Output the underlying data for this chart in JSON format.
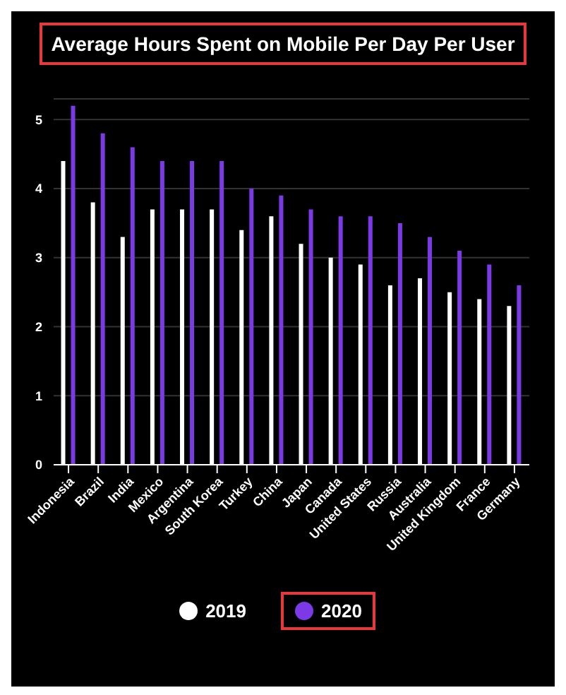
{
  "chart_data": {
    "type": "bar",
    "title": "Average Hours Spent on Mobile Per Day Per User",
    "categories": [
      "Indonesia",
      "Brazil",
      "India",
      "Mexico",
      "Argentina",
      "South Korea",
      "Turkey",
      "China",
      "Japan",
      "Canada",
      "United States",
      "Russia",
      "Australia",
      "United Kingdom",
      "France",
      "Germany"
    ],
    "series": [
      {
        "name": "2019",
        "color": "#ffffff",
        "values": [
          4.4,
          3.8,
          3.3,
          3.7,
          3.7,
          3.7,
          3.4,
          3.6,
          3.2,
          3.0,
          2.9,
          2.6,
          2.7,
          2.5,
          2.4,
          2.3
        ]
      },
      {
        "name": "2020",
        "color": "#7b3ae6",
        "values": [
          5.2,
          4.8,
          4.6,
          4.4,
          4.4,
          4.4,
          4.0,
          3.9,
          3.7,
          3.6,
          3.6,
          3.5,
          3.3,
          3.1,
          2.9,
          2.6
        ]
      }
    ],
    "ylim": [
      0,
      5.3
    ],
    "yticks": [
      0,
      1,
      2,
      3,
      4,
      5
    ],
    "grid": "y",
    "legend": "bottom"
  }
}
